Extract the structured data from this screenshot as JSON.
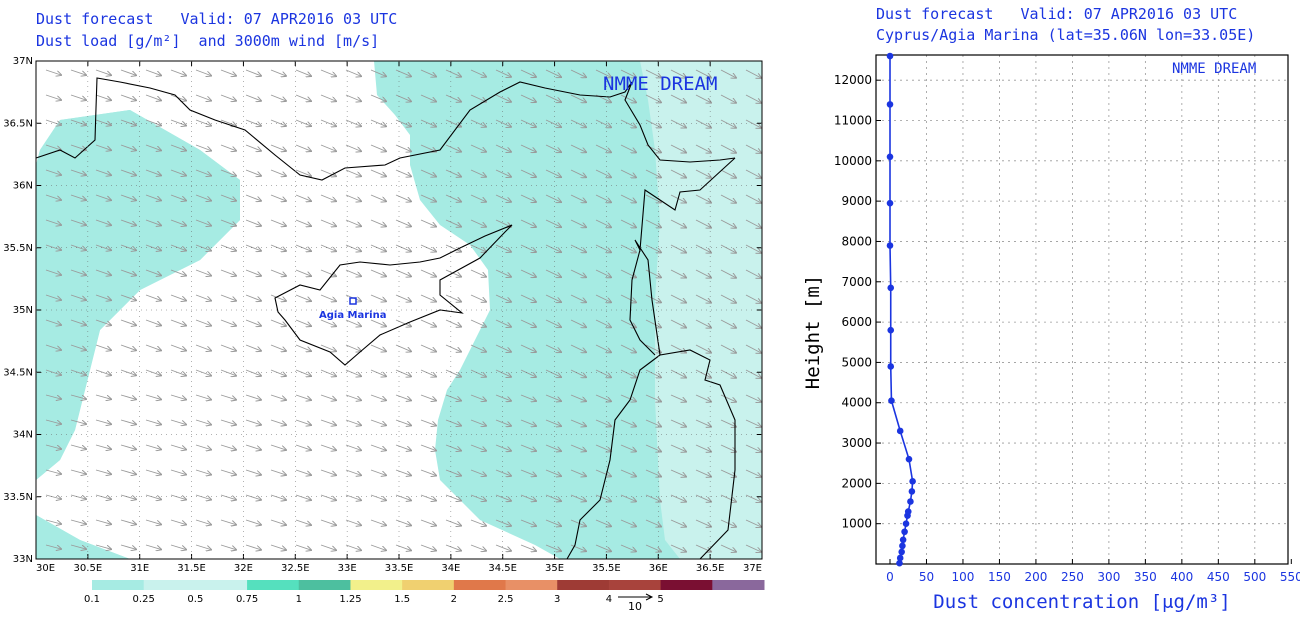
{
  "map_header": {
    "line1": "Dust forecast   Valid: 07 APR2016 03 UTC",
    "line2": "Dust load [g/m²]  and 3000m wind [m/s]"
  },
  "profile_header": {
    "line1": "Dust forecast   Valid: 07 APR2016 03 UTC",
    "line2": "Cyprus/Agia Marina (lat=35.06N lon=33.05E)"
  },
  "colors": {
    "accent": "#1b35e0",
    "dust_light": "#a6ebe3",
    "dust_lighter": "#c9f2ed",
    "arrow": "#9a9a9a",
    "coast": "#000000"
  },
  "chart_data": [
    {
      "type": "map",
      "brand": "NMME DREAM",
      "station": {
        "label": "Agia Marina",
        "lon": 33.05,
        "lat": 35.06
      },
      "xlim": [
        30,
        37
      ],
      "ylim": [
        33,
        37
      ],
      "x_ticks": [
        "30E",
        "30.5E",
        "31E",
        "31.5E",
        "32E",
        "32.5E",
        "33E",
        "33.5E",
        "34E",
        "34.5E",
        "35E",
        "35.5E",
        "36E",
        "36.5E",
        "37E"
      ],
      "y_ticks": [
        "33N",
        "33.5N",
        "34N",
        "34.5N",
        "35N",
        "35.5N",
        "36N",
        "36.5N",
        "37N"
      ],
      "wind_vector": {
        "direction": "from northwest",
        "reference_label": "10"
      },
      "colorbar": {
        "labels": [
          "0.1",
          "0.25",
          "0.5",
          "0.75",
          "1",
          "1.25",
          "1.5",
          "2",
          "2.5",
          "3",
          "4",
          "5"
        ],
        "colors": [
          "#a6ebe3",
          "#c9f2ed",
          "#c9f2ed",
          "#55e0be",
          "#4dbf9f",
          "#f2f08b",
          "#f0d070",
          "#e0784a",
          "#e89066",
          "#9e3b35",
          "#a8433c",
          "#7a0f32",
          "#8a689c"
        ]
      }
    },
    {
      "type": "line",
      "brand": "NMME DREAM",
      "xlabel": "Dust concentration [μg/m³]",
      "ylabel": "Height [m]",
      "xlim": [
        0,
        550
      ],
      "ylim": [
        0,
        12600
      ],
      "x_ticks": [
        0,
        50,
        100,
        150,
        200,
        250,
        300,
        350,
        400,
        450,
        500,
        550
      ],
      "y_ticks": [
        1000,
        2000,
        3000,
        4000,
        5000,
        6000,
        7000,
        8000,
        9000,
        10000,
        11000,
        12000
      ],
      "grid": true,
      "series": [
        {
          "x": [
            13,
            14,
            16,
            17,
            18,
            20,
            22,
            24,
            25,
            28,
            30,
            31,
            26,
            14,
            2,
            1,
            1,
            1,
            0,
            0,
            0,
            0,
            0
          ],
          "y": [
            20,
            150,
            300,
            450,
            600,
            800,
            1000,
            1200,
            1300,
            1550,
            1800,
            2050,
            2600,
            3300,
            4050,
            4900,
            5800,
            6850,
            7900,
            8950,
            10100,
            11400,
            12600
          ]
        }
      ]
    }
  ]
}
